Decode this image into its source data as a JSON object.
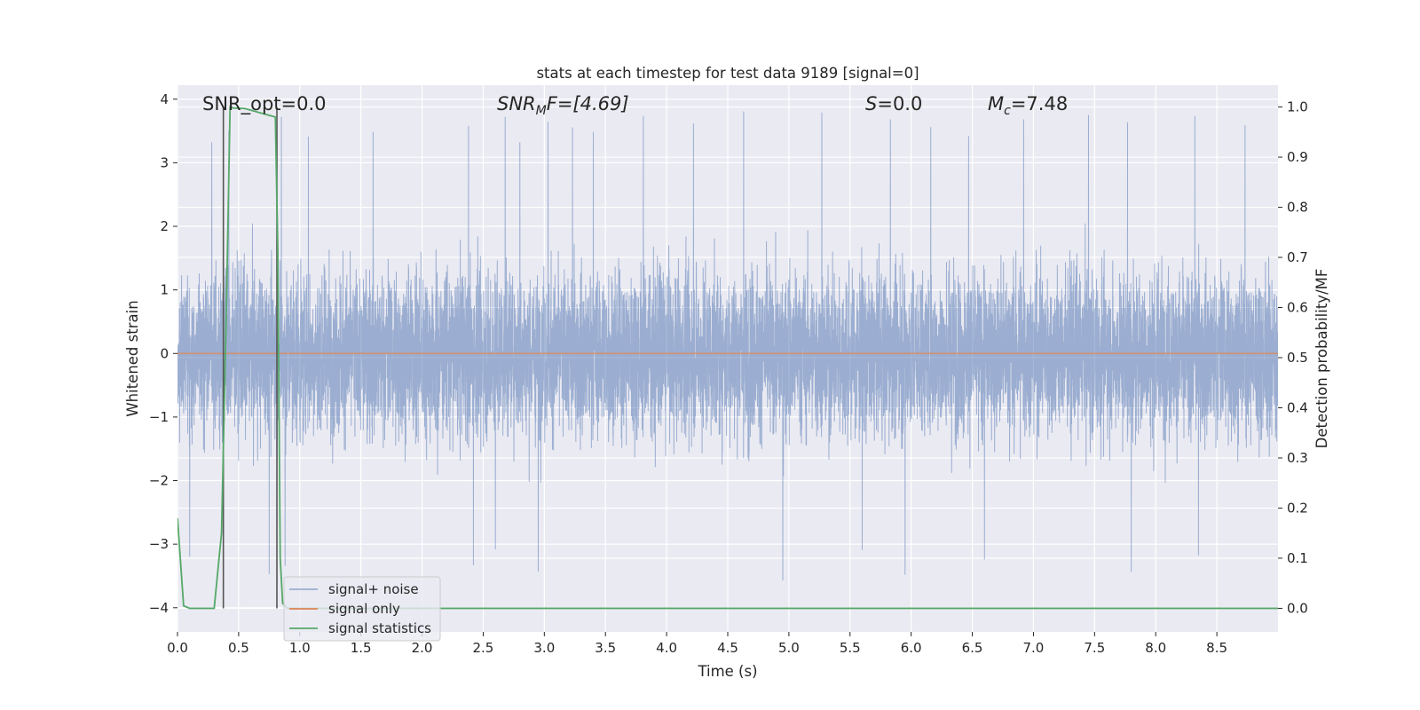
{
  "chart_data": {
    "type": "line",
    "title": "stats at each timestep for test data 9189 [signal=0]",
    "xlabel": "Time (s)",
    "ylabel_left": "Whitened strain",
    "ylabel_right": "Detection probability/MF",
    "xlim": [
      0.0,
      9.0
    ],
    "ylim_left": [
      -4.38,
      4.22
    ],
    "ylim_right": [
      -0.047,
      1.0435
    ],
    "x_ticks": [
      "0.0",
      "0.5",
      "1.0",
      "1.5",
      "2.0",
      "2.5",
      "3.0",
      "3.5",
      "4.0",
      "4.5",
      "5.0",
      "5.5",
      "6.0",
      "6.5",
      "7.0",
      "7.5",
      "8.0",
      "8.5"
    ],
    "y_left_ticks": [
      "4",
      "3",
      "2",
      "1",
      "0",
      "−1",
      "−2",
      "−3",
      "−4"
    ],
    "y_right_ticks": [
      "1.0",
      "0.9",
      "0.8",
      "0.7",
      "0.6",
      "0.5",
      "0.4",
      "0.3",
      "0.2",
      "0.1",
      "0.0"
    ],
    "grid": true,
    "legend_position": "lower-left",
    "annotations": {
      "snr_opt": "SNR_opt=0.0",
      "snr_mf_sym": "SNR",
      "snr_mf_sub": "M",
      "snr_mf_rest": "F=[4.69]",
      "s_sym": "S",
      "s_rest": "=0.0",
      "mc_sym": "M",
      "mc_sub": "c",
      "mc_rest": "=7.48"
    },
    "vlines_x": [
      0.375,
      0.813
    ],
    "series": [
      {
        "name": "signal+ noise",
        "axis": "left",
        "color": "#4c72b0",
        "alpha": 0.5,
        "description_stats": {
          "sample_rate": 1024,
          "envelope_peak_max": 3.87,
          "envelope_peak_min": -3.57
        },
        "notable_peaks_x": [
          0.28,
          0.42,
          0.85,
          1.07,
          1.6,
          2.38,
          2.68,
          2.8,
          3.03,
          3.23,
          3.4,
          3.81,
          4.22,
          4.63,
          5.27,
          5.83,
          6.16,
          6.47,
          6.92,
          7.45,
          7.77,
          8.32,
          8.73
        ],
        "notable_troughs_x": [
          0.1,
          0.75,
          0.88,
          2.42,
          2.6,
          2.95,
          4.95,
          5.6,
          5.95,
          6.6,
          7.8,
          8.35
        ]
      },
      {
        "name": "signal only",
        "axis": "left",
        "color": "#dd8452",
        "values_constant": 0
      },
      {
        "name": "signal statistics",
        "axis": "right",
        "color": "#55a868",
        "x": [
          0.0,
          0.05,
          0.1,
          0.3,
          0.36,
          0.4,
          0.43,
          0.46,
          0.55,
          0.8,
          0.82,
          0.84,
          0.86,
          0.9,
          1.0,
          9.0
        ],
        "y": [
          0.18,
          0.005,
          0.0,
          0.0,
          0.15,
          0.6,
          1.0,
          0.998,
          0.997,
          0.98,
          0.72,
          0.1,
          0.01,
          0.0,
          0.0,
          0.0
        ]
      }
    ]
  }
}
